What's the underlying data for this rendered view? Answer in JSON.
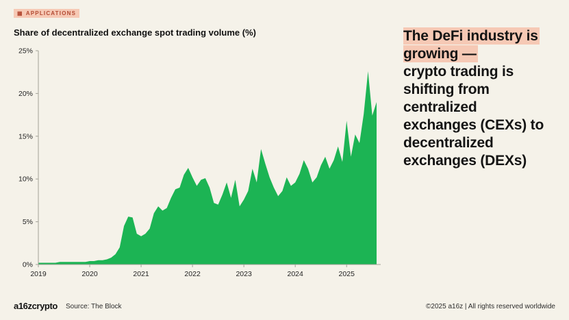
{
  "header": {
    "tag": "Applications"
  },
  "chart": {
    "title": "Share of decentralized exchange spot trading volume (%)"
  },
  "headline": {
    "highlight": "The DeFi industry is growing —",
    "rest": "crypto trading is shifting from centralized exchanges (CEXs) to decentralized exchanges (DEXs)",
    "highlight_color": "#f6c9b5"
  },
  "footer": {
    "logo": "a16zcrypto",
    "source": "Source: The Block",
    "copyright": "©2025 a16z | All rights reserved worldwide"
  },
  "chart_data": {
    "type": "area",
    "title": "Share of decentralized exchange spot trading volume (%)",
    "xlabel": "",
    "ylabel": "",
    "ylim": [
      0,
      25
    ],
    "grid": false,
    "legend": "none",
    "color": "#1cb454",
    "axis_color": "#a3a298",
    "tick_text_color": "#232323",
    "x": [
      "2019-01",
      "2019-02",
      "2019-03",
      "2019-04",
      "2019-05",
      "2019-06",
      "2019-07",
      "2019-08",
      "2019-09",
      "2019-10",
      "2019-11",
      "2019-12",
      "2020-01",
      "2020-02",
      "2020-03",
      "2020-04",
      "2020-05",
      "2020-06",
      "2020-07",
      "2020-08",
      "2020-09",
      "2020-10",
      "2020-11",
      "2020-12",
      "2021-01",
      "2021-02",
      "2021-03",
      "2021-04",
      "2021-05",
      "2021-06",
      "2021-07",
      "2021-08",
      "2021-09",
      "2021-10",
      "2021-11",
      "2021-12",
      "2022-01",
      "2022-02",
      "2022-03",
      "2022-04",
      "2022-05",
      "2022-06",
      "2022-07",
      "2022-08",
      "2022-09",
      "2022-10",
      "2022-11",
      "2022-12",
      "2023-01",
      "2023-02",
      "2023-03",
      "2023-04",
      "2023-05",
      "2023-06",
      "2023-07",
      "2023-08",
      "2023-09",
      "2023-10",
      "2023-11",
      "2023-12",
      "2024-01",
      "2024-02",
      "2024-03",
      "2024-04",
      "2024-05",
      "2024-06",
      "2024-07",
      "2024-08",
      "2024-09",
      "2024-10",
      "2024-11",
      "2024-12",
      "2025-01",
      "2025-02",
      "2025-03",
      "2025-04",
      "2025-05",
      "2025-06",
      "2025-07",
      "2025-08"
    ],
    "values": [
      0.2,
      0.2,
      0.2,
      0.2,
      0.2,
      0.3,
      0.3,
      0.3,
      0.3,
      0.3,
      0.3,
      0.3,
      0.4,
      0.4,
      0.5,
      0.5,
      0.6,
      0.8,
      1.2,
      2.0,
      4.5,
      5.6,
      5.5,
      3.6,
      3.3,
      3.6,
      4.2,
      6.0,
      6.8,
      6.3,
      6.6,
      7.8,
      8.8,
      9.0,
      10.5,
      11.3,
      10.2,
      9.2,
      9.9,
      10.1,
      9.0,
      7.2,
      7.0,
      8.2,
      9.6,
      7.8,
      9.9,
      6.8,
      7.6,
      8.6,
      11.2,
      9.6,
      13.5,
      11.8,
      10.2,
      9.0,
      8.0,
      8.6,
      10.2,
      9.2,
      9.6,
      10.6,
      12.2,
      11.2,
      9.6,
      10.2,
      11.6,
      12.6,
      11.2,
      12.2,
      13.8,
      12.0,
      16.8,
      12.6,
      15.2,
      14.2,
      17.6,
      22.6,
      17.4,
      19.0
    ],
    "yticks": [
      {
        "v": 0,
        "label": "0%"
      },
      {
        "v": 5,
        "label": "5%"
      },
      {
        "v": 10,
        "label": "10%"
      },
      {
        "v": 15,
        "label": "15%"
      },
      {
        "v": 20,
        "label": "20%"
      },
      {
        "v": 25,
        "label": "25%"
      }
    ],
    "xticks": [
      {
        "m": 0,
        "label": "2019"
      },
      {
        "m": 12,
        "label": "2020"
      },
      {
        "m": 24,
        "label": "2021"
      },
      {
        "m": 36,
        "label": "2022"
      },
      {
        "m": 48,
        "label": "2023"
      },
      {
        "m": 60,
        "label": "2024"
      },
      {
        "m": 72,
        "label": "2025"
      }
    ]
  }
}
